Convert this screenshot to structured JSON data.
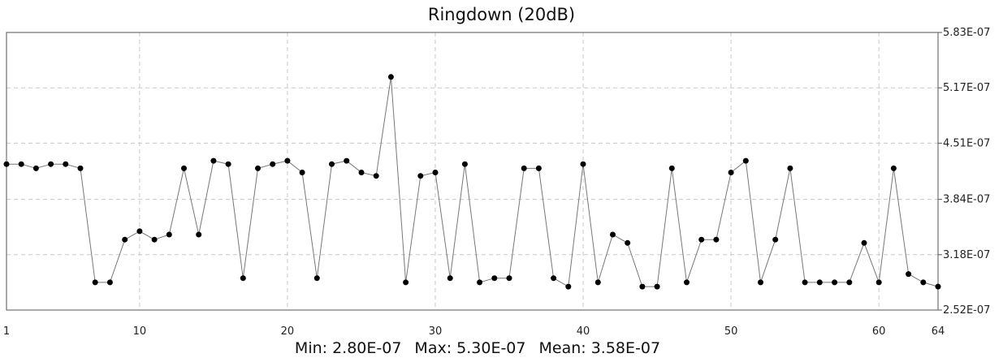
{
  "chart_data": {
    "type": "line",
    "title": "Ringdown (20dB)",
    "xlabel": "",
    "ylabel": "",
    "xlim": [
      1,
      64
    ],
    "ylim": [
      2.52e-07,
      5.83e-07
    ],
    "x_ticks": [
      "1",
      "10",
      "20",
      "30",
      "40",
      "50",
      "60",
      "64"
    ],
    "y_ticks": [
      "5.83E-07",
      "5.17E-07",
      "4.51E-07",
      "3.84E-07",
      "3.18E-07",
      "2.52E-07"
    ],
    "grid": true,
    "y_axis_position": "right",
    "series": [
      {
        "x": [
          1,
          2,
          3,
          4,
          5,
          6,
          7,
          8,
          9,
          10,
          11,
          12,
          13,
          14,
          15,
          16,
          17,
          18,
          19,
          20,
          21,
          22,
          23,
          24,
          25,
          26,
          27,
          28,
          29,
          30,
          31,
          32,
          33,
          34,
          35,
          36,
          37,
          38,
          39,
          40,
          41,
          42,
          43,
          44,
          45,
          46,
          47,
          48,
          49,
          50,
          51,
          52,
          53,
          54,
          55,
          56,
          57,
          58,
          59,
          60,
          61,
          62,
          63,
          64
        ],
        "values": [
          4.26e-07,
          4.26e-07,
          4.21e-07,
          4.26e-07,
          4.26e-07,
          4.21e-07,
          2.85e-07,
          2.85e-07,
          3.36e-07,
          3.46e-07,
          3.36e-07,
          3.42e-07,
          4.21e-07,
          3.42e-07,
          4.3e-07,
          4.26e-07,
          2.9e-07,
          4.21e-07,
          4.26e-07,
          4.3e-07,
          4.16e-07,
          2.9e-07,
          4.26e-07,
          4.3e-07,
          4.16e-07,
          4.12e-07,
          5.3e-07,
          2.85e-07,
          4.12e-07,
          4.16e-07,
          2.9e-07,
          4.26e-07,
          2.85e-07,
          2.9e-07,
          2.9e-07,
          4.21e-07,
          4.21e-07,
          2.9e-07,
          2.8e-07,
          4.26e-07,
          2.85e-07,
          3.42e-07,
          3.32e-07,
          2.8e-07,
          2.8e-07,
          4.21e-07,
          2.85e-07,
          3.36e-07,
          3.36e-07,
          4.16e-07,
          4.3e-07,
          2.85e-07,
          3.36e-07,
          4.21e-07,
          2.85e-07,
          2.85e-07,
          2.85e-07,
          2.85e-07,
          3.32e-07,
          2.85e-07,
          4.21e-07,
          2.95e-07,
          2.85e-07,
          2.8e-07
        ]
      }
    ]
  },
  "stats": {
    "min": "Min: 2.80E-07",
    "max": "Max: 5.30E-07",
    "mean": "Mean: 3.58E-07"
  }
}
